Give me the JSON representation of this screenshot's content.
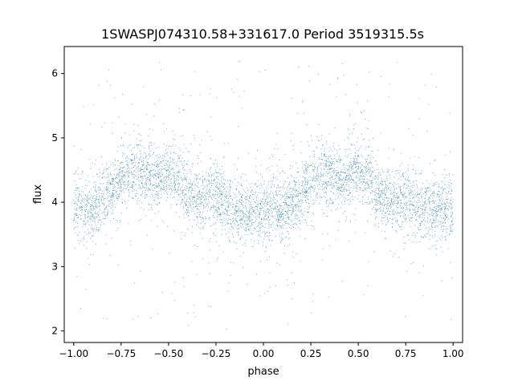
{
  "chart_data": {
    "type": "scatter",
    "title": "1SWASPJ074310.58+331617.0 Period 3519315.5s",
    "xlabel": "phase",
    "ylabel": "flux",
    "xlim": [
      -1.05,
      1.05
    ],
    "ylim": [
      1.82,
      6.42
    ],
    "xticks": [
      -1.0,
      -0.75,
      -0.5,
      -0.25,
      0.0,
      0.25,
      0.5,
      0.75,
      1.0
    ],
    "xtick_labels": [
      "−1.00",
      "−0.75",
      "−0.50",
      "−0.25",
      "0.00",
      "0.25",
      "0.50",
      "0.75",
      "1.00"
    ],
    "yticks": [
      2,
      3,
      4,
      5,
      6
    ],
    "ytick_labels": [
      "2",
      "3",
      "4",
      "5",
      "6"
    ],
    "grid": false,
    "marker_color": "#1f77b4",
    "series": [
      {
        "x": [
          -1.0,
          -0.95,
          -0.9,
          -0.85,
          -0.8,
          -0.75,
          -0.7,
          -0.65,
          -0.6,
          -0.55,
          -0.5,
          -0.45,
          -0.4,
          -0.35,
          -0.3,
          -0.25,
          -0.2,
          -0.15,
          -0.1,
          -0.05,
          0.0,
          0.05,
          0.1,
          0.15,
          0.2,
          0.25,
          0.3,
          0.35,
          0.4,
          0.45,
          0.5,
          0.55,
          0.6,
          0.65,
          0.7,
          0.75,
          0.8,
          0.85,
          0.9,
          0.95,
          1.0
        ],
        "y": [
          3.95,
          3.9,
          3.85,
          4.05,
          4.2,
          4.35,
          4.45,
          4.5,
          4.4,
          4.35,
          4.45,
          4.4,
          4.1,
          4.05,
          4.05,
          4.15,
          3.95,
          3.9,
          3.85,
          3.8,
          3.85,
          3.95,
          3.85,
          3.95,
          4.15,
          4.3,
          4.45,
          4.45,
          4.35,
          4.4,
          4.5,
          4.4,
          4.1,
          4.05,
          4.05,
          4.05,
          3.95,
          3.9,
          3.85,
          3.85,
          3.95
        ]
      }
    ]
  }
}
